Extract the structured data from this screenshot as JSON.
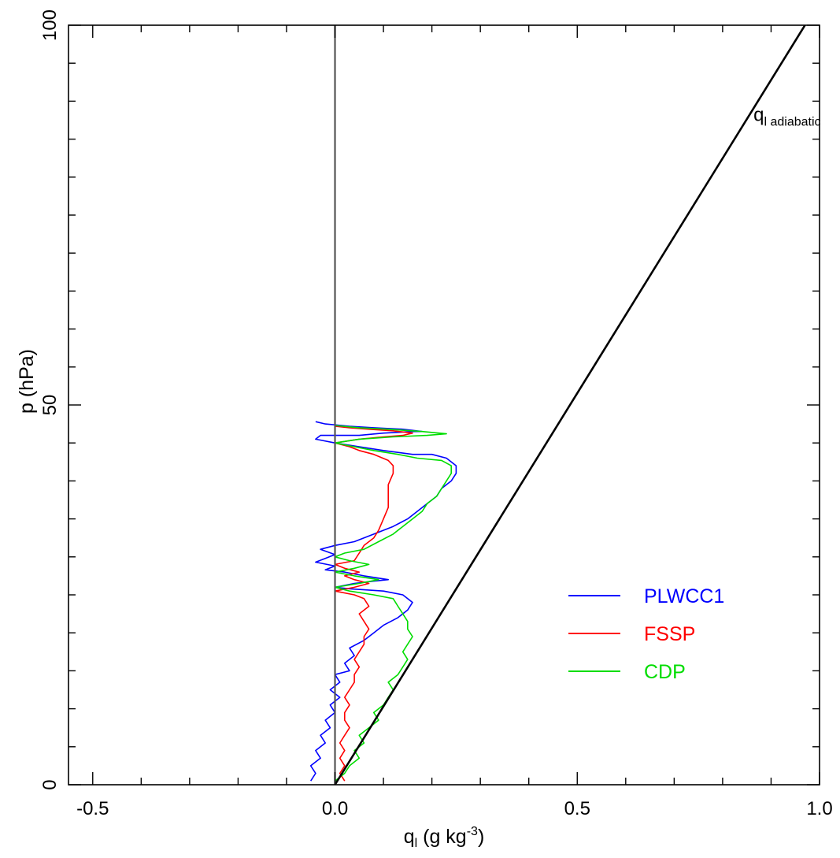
{
  "chart_data": {
    "type": "line",
    "title": "",
    "xlabel": {
      "main": "q",
      "sub": "l",
      "rest": " (g kg",
      "sup": "-3",
      "close": ")"
    },
    "ylabel": "p (hPa)",
    "xlim": [
      -0.55,
      1.0
    ],
    "ylim": [
      0,
      100
    ],
    "xticks": [
      -0.5,
      0.0,
      0.5,
      1.0
    ],
    "xtick_labels": [
      "-0.5",
      "0.0",
      "0.5",
      "1.0"
    ],
    "yticks": [
      0,
      50,
      100
    ],
    "ytick_labels": [
      "0",
      "50",
      "100"
    ],
    "grid": false,
    "legend_position": "center-right",
    "reference_line": {
      "x": 0.0,
      "color": "#555555"
    },
    "annotation": {
      "main": "q",
      "sub": "l adiabatic",
      "x": 0.88,
      "y": 88
    },
    "series": [
      {
        "name": "PLWCC1",
        "color": "#0000ff",
        "points": [
          [
            -0.05,
            0.5
          ],
          [
            -0.04,
            1.5
          ],
          [
            -0.05,
            2.5
          ],
          [
            -0.03,
            3.5
          ],
          [
            -0.04,
            4.5
          ],
          [
            -0.02,
            5.5
          ],
          [
            -0.03,
            6.5
          ],
          [
            -0.01,
            7.5
          ],
          [
            -0.02,
            8.5
          ],
          [
            0.0,
            9.5
          ],
          [
            -0.01,
            10.5
          ],
          [
            0.01,
            11.5
          ],
          [
            -0.01,
            12.5
          ],
          [
            0.01,
            13.5
          ],
          [
            0.0,
            14.5
          ],
          [
            0.03,
            15.0
          ],
          [
            0.02,
            16.0
          ],
          [
            0.04,
            17.0
          ],
          [
            0.03,
            18.0
          ],
          [
            0.06,
            19.0
          ],
          [
            0.08,
            20.0
          ],
          [
            0.1,
            21.0
          ],
          [
            0.13,
            22.0
          ],
          [
            0.15,
            23.0
          ],
          [
            0.16,
            24.0
          ],
          [
            0.14,
            25.0
          ],
          [
            0.1,
            25.5
          ],
          [
            0.03,
            25.8
          ],
          [
            0.0,
            26.0
          ],
          [
            0.04,
            26.5
          ],
          [
            0.08,
            26.8
          ],
          [
            0.11,
            27.0
          ],
          [
            0.06,
            27.5
          ],
          [
            0.02,
            28.0
          ],
          [
            -0.02,
            28.3
          ],
          [
            0.0,
            28.8
          ],
          [
            -0.04,
            29.3
          ],
          [
            -0.02,
            29.8
          ],
          [
            0.0,
            30.3
          ],
          [
            -0.03,
            31.0
          ],
          [
            0.0,
            31.5
          ],
          [
            0.04,
            32.0
          ],
          [
            0.08,
            33.0
          ],
          [
            0.12,
            34.0
          ],
          [
            0.15,
            35.0
          ],
          [
            0.17,
            36.0
          ],
          [
            0.19,
            37.0
          ],
          [
            0.21,
            38.0
          ],
          [
            0.22,
            39.0
          ],
          [
            0.24,
            40.0
          ],
          [
            0.25,
            41.0
          ],
          [
            0.25,
            42.0
          ],
          [
            0.23,
            43.0
          ],
          [
            0.2,
            43.5
          ],
          [
            0.16,
            43.5
          ],
          [
            0.1,
            44.0
          ],
          [
            0.05,
            44.5
          ],
          [
            0.0,
            45.0
          ],
          [
            -0.04,
            45.5
          ],
          [
            -0.03,
            46.0
          ],
          [
            0.05,
            46.0
          ],
          [
            0.1,
            46.3
          ],
          [
            0.16,
            46.5
          ],
          [
            0.18,
            46.5
          ],
          [
            0.14,
            46.8
          ],
          [
            0.08,
            47.0
          ],
          [
            0.03,
            47.2
          ],
          [
            -0.02,
            47.5
          ],
          [
            -0.04,
            47.8
          ]
        ]
      },
      {
        "name": "FSSP",
        "color": "#ff0000",
        "points": [
          [
            0.02,
            0.5
          ],
          [
            0.01,
            1.5
          ],
          [
            0.02,
            2.5
          ],
          [
            0.01,
            3.5
          ],
          [
            0.02,
            4.5
          ],
          [
            0.01,
            5.5
          ],
          [
            0.02,
            6.5
          ],
          [
            0.03,
            7.5
          ],
          [
            0.02,
            8.5
          ],
          [
            0.02,
            9.5
          ],
          [
            0.03,
            10.5
          ],
          [
            0.02,
            11.5
          ],
          [
            0.03,
            12.5
          ],
          [
            0.04,
            13.5
          ],
          [
            0.04,
            14.5
          ],
          [
            0.05,
            15.5
          ],
          [
            0.04,
            16.5
          ],
          [
            0.05,
            17.5
          ],
          [
            0.06,
            18.5
          ],
          [
            0.06,
            19.5
          ],
          [
            0.07,
            20.5
          ],
          [
            0.06,
            21.5
          ],
          [
            0.05,
            22.5
          ],
          [
            0.07,
            23.5
          ],
          [
            0.06,
            24.5
          ],
          [
            0.04,
            25.0
          ],
          [
            0.0,
            25.5
          ],
          [
            0.04,
            26.0
          ],
          [
            0.07,
            26.5
          ],
          [
            0.04,
            27.0
          ],
          [
            0.02,
            27.5
          ],
          [
            0.05,
            28.0
          ],
          [
            0.02,
            28.5
          ],
          [
            0.0,
            29.0
          ],
          [
            0.04,
            29.5
          ],
          [
            0.05,
            30.5
          ],
          [
            0.06,
            31.5
          ],
          [
            0.08,
            32.5
          ],
          [
            0.09,
            33.5
          ],
          [
            0.1,
            35.0
          ],
          [
            0.11,
            36.5
          ],
          [
            0.11,
            38.0
          ],
          [
            0.11,
            39.5
          ],
          [
            0.12,
            41.0
          ],
          [
            0.12,
            42.0
          ],
          [
            0.11,
            42.7
          ],
          [
            0.08,
            43.5
          ],
          [
            0.05,
            44.0
          ],
          [
            0.03,
            44.5
          ],
          [
            0.0,
            45.0
          ],
          [
            0.05,
            45.5
          ],
          [
            0.1,
            45.8
          ],
          [
            0.14,
            46.0
          ],
          [
            0.16,
            46.3
          ],
          [
            0.12,
            46.6
          ],
          [
            0.07,
            46.8
          ],
          [
            0.03,
            47.0
          ],
          [
            0.0,
            47.2
          ]
        ]
      },
      {
        "name": "CDP",
        "color": "#00dd00",
        "points": [
          [
            0.0,
            0.5
          ],
          [
            0.02,
            1.5
          ],
          [
            0.03,
            2.5
          ],
          [
            0.05,
            3.5
          ],
          [
            0.04,
            4.5
          ],
          [
            0.06,
            5.5
          ],
          [
            0.05,
            6.5
          ],
          [
            0.07,
            7.5
          ],
          [
            0.09,
            8.5
          ],
          [
            0.08,
            9.5
          ],
          [
            0.1,
            10.5
          ],
          [
            0.11,
            11.5
          ],
          [
            0.12,
            12.5
          ],
          [
            0.11,
            13.5
          ],
          [
            0.13,
            14.5
          ],
          [
            0.14,
            15.5
          ],
          [
            0.15,
            16.5
          ],
          [
            0.14,
            17.5
          ],
          [
            0.15,
            18.5
          ],
          [
            0.16,
            19.5
          ],
          [
            0.15,
            20.5
          ],
          [
            0.15,
            21.5
          ],
          [
            0.14,
            22.5
          ],
          [
            0.13,
            23.5
          ],
          [
            0.12,
            24.5
          ],
          [
            0.08,
            25.0
          ],
          [
            0.03,
            25.5
          ],
          [
            0.0,
            26.0
          ],
          [
            0.05,
            26.5
          ],
          [
            0.09,
            27.0
          ],
          [
            0.04,
            27.5
          ],
          [
            0.0,
            28.0
          ],
          [
            0.04,
            28.5
          ],
          [
            0.07,
            29.0
          ],
          [
            0.03,
            29.5
          ],
          [
            0.0,
            30.0
          ],
          [
            0.02,
            30.5
          ],
          [
            0.06,
            31.0
          ],
          [
            0.09,
            32.0
          ],
          [
            0.12,
            33.0
          ],
          [
            0.14,
            34.0
          ],
          [
            0.16,
            35.0
          ],
          [
            0.18,
            36.0
          ],
          [
            0.19,
            37.0
          ],
          [
            0.21,
            38.0
          ],
          [
            0.22,
            39.0
          ],
          [
            0.23,
            40.0
          ],
          [
            0.24,
            41.0
          ],
          [
            0.24,
            42.0
          ],
          [
            0.22,
            42.7
          ],
          [
            0.17,
            43.0
          ],
          [
            0.13,
            43.5
          ],
          [
            0.08,
            44.0
          ],
          [
            0.04,
            44.5
          ],
          [
            0.0,
            45.0
          ],
          [
            0.05,
            45.5
          ],
          [
            0.12,
            45.8
          ],
          [
            0.19,
            46.0
          ],
          [
            0.23,
            46.2
          ],
          [
            0.18,
            46.5
          ],
          [
            0.11,
            46.8
          ],
          [
            0.05,
            47.0
          ],
          [
            0.0,
            47.3
          ]
        ]
      },
      {
        "name": "",
        "color": "#000000",
        "points": [
          [
            0.0,
            0.0
          ],
          [
            0.97,
            100.0
          ]
        ]
      }
    ],
    "legend": [
      {
        "label": "PLWCC1",
        "color": "#0000ff"
      },
      {
        "label": "FSSP",
        "color": "#ff0000"
      },
      {
        "label": "CDP",
        "color": "#00dd00"
      }
    ]
  }
}
